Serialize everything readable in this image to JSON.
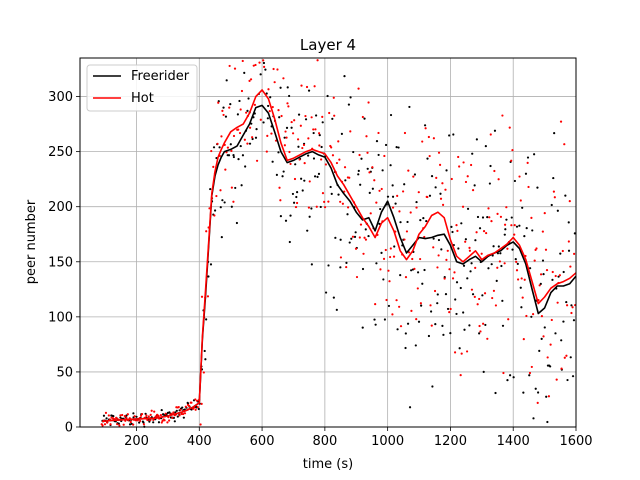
{
  "chart_data": {
    "type": "line",
    "title": "Layer 4",
    "xlabel": "time (s)",
    "ylabel": "peer number",
    "xlim": [
      20,
      1600
    ],
    "ylim": [
      0,
      335
    ],
    "xticks": [
      200,
      400,
      600,
      800,
      1000,
      1200,
      1400,
      1600
    ],
    "yticks": [
      0,
      50,
      100,
      150,
      200,
      250,
      300
    ],
    "grid": true,
    "legend": "top-left",
    "series": [
      {
        "name": "Freerider",
        "color": "#000000",
        "x": [
          90,
          120,
          180,
          260,
          300,
          350,
          380,
          400,
          410,
          420,
          430,
          440,
          450,
          460,
          470,
          480,
          500,
          520,
          540,
          560,
          580,
          600,
          620,
          640,
          660,
          680,
          700,
          720,
          740,
          760,
          780,
          800,
          820,
          840,
          860,
          880,
          900,
          920,
          940,
          960,
          980,
          1000,
          1020,
          1040,
          1060,
          1080,
          1100,
          1120,
          1140,
          1160,
          1180,
          1200,
          1220,
          1240,
          1260,
          1280,
          1300,
          1320,
          1340,
          1360,
          1380,
          1400,
          1420,
          1440,
          1460,
          1480,
          1500,
          1520,
          1540,
          1560,
          1580,
          1600
        ],
        "y": [
          5,
          6,
          7,
          8,
          10,
          14,
          18,
          22,
          80,
          120,
          165,
          210,
          228,
          238,
          245,
          250,
          252,
          255,
          265,
          275,
          290,
          292,
          285,
          268,
          250,
          240,
          242,
          245,
          248,
          250,
          247,
          245,
          235,
          220,
          212,
          205,
          195,
          188,
          190,
          178,
          195,
          205,
          190,
          172,
          158,
          165,
          172,
          171,
          172,
          174,
          175,
          165,
          150,
          148,
          152,
          155,
          150,
          155,
          158,
          160,
          165,
          168,
          162,
          148,
          125,
          103,
          108,
          122,
          128,
          128,
          130,
          137
        ]
      },
      {
        "name": "Hot",
        "color": "#ff0000",
        "x": [
          90,
          120,
          180,
          260,
          300,
          350,
          380,
          400,
          410,
          420,
          430,
          440,
          450,
          460,
          470,
          480,
          500,
          520,
          540,
          560,
          580,
          600,
          620,
          640,
          660,
          680,
          700,
          720,
          740,
          760,
          780,
          800,
          820,
          840,
          860,
          880,
          900,
          920,
          940,
          960,
          980,
          1000,
          1020,
          1040,
          1060,
          1080,
          1100,
          1120,
          1140,
          1160,
          1180,
          1200,
          1220,
          1240,
          1260,
          1280,
          1300,
          1320,
          1340,
          1360,
          1380,
          1400,
          1420,
          1440,
          1460,
          1480,
          1500,
          1520,
          1540,
          1560,
          1580,
          1600
        ],
        "y": [
          5,
          6,
          7,
          8,
          10,
          14,
          18,
          22,
          82,
          125,
          168,
          212,
          232,
          245,
          252,
          258,
          268,
          272,
          275,
          285,
          300,
          306,
          298,
          280,
          258,
          242,
          244,
          247,
          250,
          252,
          250,
          248,
          240,
          228,
          220,
          210,
          200,
          190,
          182,
          172,
          185,
          190,
          178,
          160,
          152,
          160,
          175,
          182,
          192,
          195,
          190,
          170,
          155,
          150,
          155,
          160,
          152,
          156,
          158,
          162,
          166,
          172,
          165,
          152,
          132,
          112,
          118,
          126,
          130,
          132,
          135,
          140
        ]
      }
    ]
  }
}
